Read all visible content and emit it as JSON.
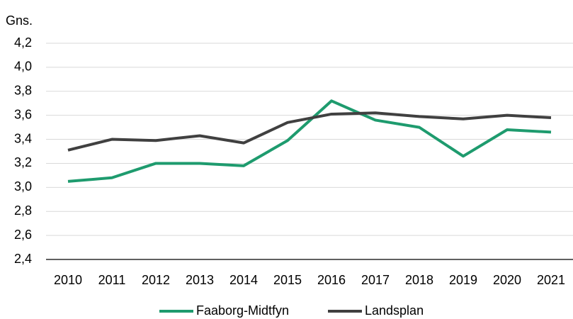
{
  "chart_data": {
    "type": "line",
    "title": "Gns.",
    "categories": [
      "2010",
      "2011",
      "2012",
      "2013",
      "2014",
      "2015",
      "2016",
      "2017",
      "2018",
      "2019",
      "2020",
      "2021"
    ],
    "series": [
      {
        "name": "Faaborg-Midtfyn",
        "color": "#1e9b6e",
        "values": [
          3.05,
          3.08,
          3.2,
          3.2,
          3.18,
          3.39,
          3.72,
          3.56,
          3.5,
          3.26,
          3.48,
          3.46
        ]
      },
      {
        "name": "Landsplan",
        "color": "#404040",
        "values": [
          3.31,
          3.4,
          3.39,
          3.43,
          3.37,
          3.54,
          3.61,
          3.62,
          3.59,
          3.57,
          3.6,
          3.58
        ]
      }
    ],
    "ylim": [
      2.4,
      4.2
    ],
    "yticks": [
      {
        "value": 2.4,
        "label": "2,4"
      },
      {
        "value": 2.6,
        "label": "2,6"
      },
      {
        "value": 2.8,
        "label": "2,8"
      },
      {
        "value": 3.0,
        "label": "3,0"
      },
      {
        "value": 3.2,
        "label": "3,2"
      },
      {
        "value": 3.4,
        "label": "3,4"
      },
      {
        "value": 3.6,
        "label": "3,6"
      },
      {
        "value": 3.8,
        "label": "3,8"
      },
      {
        "value": 4.0,
        "label": "4,0"
      },
      {
        "value": 4.2,
        "label": "4,2"
      }
    ],
    "grid": true,
    "legend": "bottom"
  }
}
